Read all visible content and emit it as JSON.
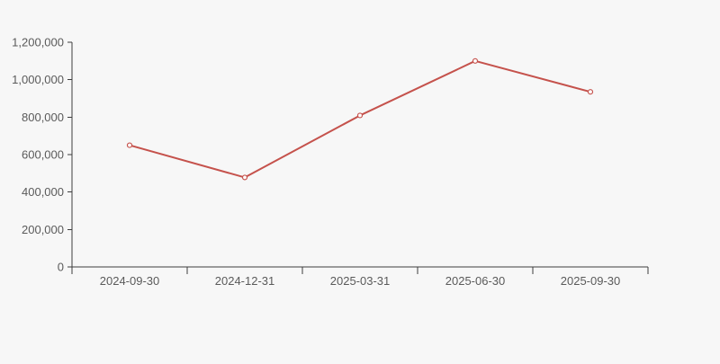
{
  "page": {
    "background_color": "#f7f7f7"
  },
  "chart_data": {
    "type": "line",
    "title": "",
    "xlabel": "",
    "ylabel": "",
    "categories": [
      "2024-09-30",
      "2024-12-31",
      "2025-03-31",
      "2025-06-30",
      "2025-09-30"
    ],
    "values": [
      650000,
      478000,
      809000,
      1100000,
      935000
    ],
    "ylim": [
      0,
      1200000
    ],
    "ytick_step": 200000,
    "ytick_labels": [
      "0",
      "200,000",
      "400,000",
      "600,000",
      "800,000",
      "1,000,000",
      "1,200,000"
    ],
    "grid": false,
    "legend": "none",
    "line_color": "#c5524c",
    "marker_style": "open-circle",
    "marker_fill": "#ffffff",
    "axis_color": "#3c3c3c",
    "tick_label_color": "#5a5a5a"
  }
}
